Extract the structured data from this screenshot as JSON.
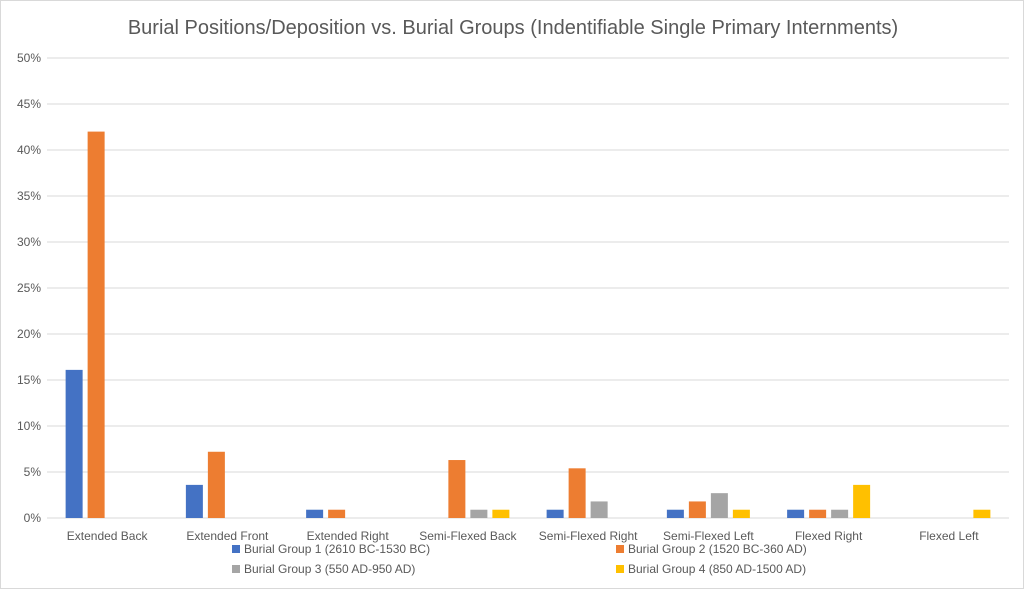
{
  "chart_data": {
    "type": "bar",
    "title": "Burial Positions/Deposition vs. Burial Groups (Indentifiable Single Primary Internments)",
    "xlabel": "",
    "ylabel": "",
    "ylim": [
      0,
      0.5
    ],
    "yticks": [
      {
        "value": 0,
        "label": "0%"
      },
      {
        "value": 0.05,
        "label": "5%"
      },
      {
        "value": 0.1,
        "label": "10%"
      },
      {
        "value": 0.15,
        "label": "15%"
      },
      {
        "value": 0.2,
        "label": "20%"
      },
      {
        "value": 0.25,
        "label": "25%"
      },
      {
        "value": 0.3,
        "label": "30%"
      },
      {
        "value": 0.35,
        "label": "35%"
      },
      {
        "value": 0.4,
        "label": "40%"
      },
      {
        "value": 0.45,
        "label": "45%"
      },
      {
        "value": 0.5,
        "label": "50%"
      }
    ],
    "grid": true,
    "legend_position": "bottom",
    "categories": [
      "Extended Back",
      "Extended Front",
      "Extended Right",
      "Semi-Flexed Back",
      "Semi-Flexed Right",
      "Semi-Flexed Left",
      "Flexed Right",
      "Flexed Left"
    ],
    "series": [
      {
        "name": "Burial Group 1 (2610 BC-1530 BC)",
        "color": "#4472c4",
        "values": [
          0.161,
          0.036,
          0.009,
          0,
          0.009,
          0.009,
          0.009,
          0
        ]
      },
      {
        "name": "Burial Group 2 (1520 BC-360 AD)",
        "color": "#ed7d31",
        "values": [
          0.42,
          0.072,
          0.009,
          0.063,
          0.054,
          0.018,
          0.009,
          0
        ]
      },
      {
        "name": "Burial Group 3 (550 AD-950 AD)",
        "color": "#a5a5a5",
        "values": [
          0,
          0,
          0,
          0.009,
          0.018,
          0.027,
          0.009,
          0
        ]
      },
      {
        "name": "Burial Group 4 (850 AD-1500 AD)",
        "color": "#ffc000",
        "values": [
          0,
          0,
          0,
          0.009,
          0,
          0.009,
          0.036,
          0.009
        ]
      }
    ]
  }
}
